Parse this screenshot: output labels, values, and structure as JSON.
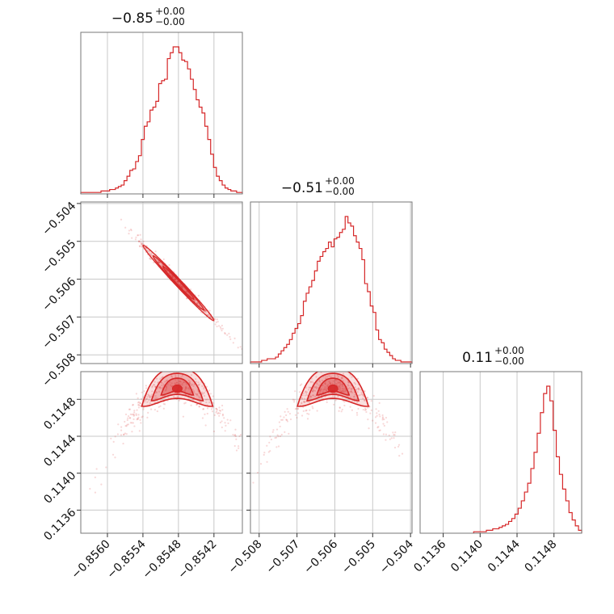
{
  "chart_data": {
    "type": "corner",
    "color": "#d62728",
    "grid": true,
    "params": [
      {
        "title": {
          "value": "−0.85",
          "upper": "+0.00",
          "lower": "−0.00"
        },
        "range": [
          -0.8563,
          -0.8537
        ],
        "ticks": [
          -0.856,
          -0.8554,
          -0.8548,
          -0.8542
        ],
        "tick_labels": [
          "−0.8560",
          "−0.8554",
          "−0.8548",
          "−0.8542"
        ],
        "hist_edges_range": [
          -0.8563,
          -0.8537
        ],
        "hist_counts": [
          1,
          1,
          1,
          1,
          1,
          1,
          1,
          2,
          2,
          2,
          3,
          3,
          4,
          5,
          6,
          9,
          12,
          16,
          17,
          22,
          26,
          37,
          46,
          49,
          57,
          59,
          63,
          75,
          77,
          78,
          92,
          96,
          100,
          100,
          96,
          91,
          90,
          85,
          78,
          71,
          64,
          59,
          55,
          46,
          37,
          27,
          18,
          12,
          9,
          6,
          4,
          3,
          2,
          2,
          1,
          1
        ]
      },
      {
        "title": {
          "value": "−0.51",
          "upper": "+0.00",
          "lower": "−0.00"
        },
        "range": [
          -0.5082,
          -0.5039
        ],
        "ticks": [
          -0.508,
          -0.507,
          -0.506,
          -0.505,
          -0.504
        ],
        "tick_labels": [
          "−0.508",
          "−0.507",
          "−0.506",
          "−0.505",
          "−0.504"
        ],
        "hist_counts": [
          1,
          1,
          1,
          1,
          2,
          2,
          3,
          3,
          3,
          4,
          6,
          8,
          10,
          12,
          15,
          19,
          22,
          25,
          30,
          39,
          44,
          48,
          52,
          58,
          64,
          67,
          70,
          72,
          76,
          73,
          78,
          79,
          82,
          84,
          92,
          88,
          86,
          80,
          76,
          72,
          65,
          50,
          45,
          36,
          32,
          21,
          15,
          13,
          9,
          7,
          5,
          3,
          2,
          2,
          1,
          1,
          1,
          1
        ]
      },
      {
        "title": {
          "value": "0.11",
          "upper": "+0.00",
          "lower": "−0.00"
        },
        "range": [
          -0.5,
          0.5
        ],
        "axis_range": [
          0.11335,
          0.1151
        ],
        "ticks": [
          0.1136,
          0.114,
          0.1144,
          0.1148
        ],
        "tick_labels": [
          "0.1136",
          "0.1140",
          "0.1144",
          "0.1148"
        ],
        "hist_counts": [
          1,
          1,
          1,
          1,
          2,
          2,
          3,
          3,
          4,
          5,
          6,
          8,
          10,
          13,
          17,
          22,
          28,
          34,
          44,
          55,
          68,
          82,
          95,
          100,
          90,
          70,
          52,
          40,
          30,
          22,
          14,
          9,
          5,
          2
        ]
      }
    ],
    "scatter_pairs": [
      {
        "x_param": 0,
        "y_param": 1,
        "center": [
          -0.8548,
          -0.5061
        ],
        "correlation": "negative"
      },
      {
        "x_param": 0,
        "y_param": 2,
        "center": [
          -0.8548,
          0.11485
        ],
        "shape": "arch"
      },
      {
        "x_param": 1,
        "y_param": 2,
        "center": [
          -0.506,
          0.11485
        ],
        "shape": "arch"
      }
    ]
  }
}
